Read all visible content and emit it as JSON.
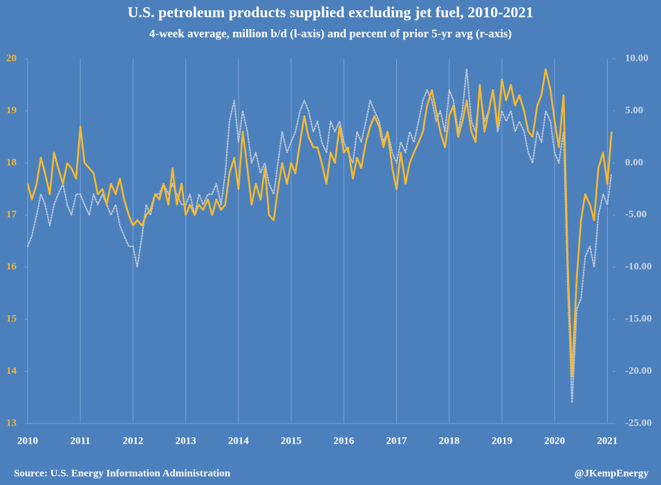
{
  "chart_data": {
    "type": "line",
    "title": "U.S. petroleum products supplied excluding jet fuel, 2010-2021",
    "subtitle": "4-week average, million b/d (l-axis) and percent of prior 5-yr avg (r-axis)",
    "source": "Source: U.S. Energy Information Administration",
    "credit": "@JKempEnergy",
    "xlim": [
      2010,
      2021.1
    ],
    "xticks": [
      2010,
      2011,
      2012,
      2013,
      2014,
      2015,
      2016,
      2017,
      2018,
      2019,
      2020,
      2021
    ],
    "ylim": [
      13,
      20
    ],
    "yticks": [
      13,
      14,
      15,
      16,
      17,
      18,
      19,
      20
    ],
    "y2lim": [
      -25,
      10
    ],
    "y2ticks": [
      {
        "value": -25,
        "label": "-25.00"
      },
      {
        "value": -20,
        "label": "-20.00"
      },
      {
        "value": -15,
        "label": "-15.00"
      },
      {
        "value": -10,
        "label": "-10.00"
      },
      {
        "value": -5,
        "label": "-5.00"
      },
      {
        "value": 0,
        "label": "0.00"
      },
      {
        "value": 5,
        "label": "5.00"
      },
      {
        "value": 10,
        "label": "10.00"
      }
    ],
    "grid": true,
    "x": [
      2010,
      2010.08,
      2010.17,
      2010.25,
      2010.33,
      2010.42,
      2010.5,
      2010.58,
      2010.67,
      2010.75,
      2010.83,
      2010.92,
      2011,
      2011.08,
      2011.17,
      2011.25,
      2011.33,
      2011.42,
      2011.5,
      2011.58,
      2011.67,
      2011.75,
      2011.83,
      2011.92,
      2012,
      2012.08,
      2012.17,
      2012.25,
      2012.33,
      2012.42,
      2012.5,
      2012.58,
      2012.67,
      2012.75,
      2012.83,
      2012.92,
      2013,
      2013.08,
      2013.17,
      2013.25,
      2013.33,
      2013.42,
      2013.5,
      2013.58,
      2013.67,
      2013.75,
      2013.83,
      2013.92,
      2014,
      2014.08,
      2014.17,
      2014.25,
      2014.33,
      2014.42,
      2014.5,
      2014.58,
      2014.67,
      2014.75,
      2014.83,
      2014.92,
      2015,
      2015.08,
      2015.17,
      2015.25,
      2015.33,
      2015.42,
      2015.5,
      2015.58,
      2015.67,
      2015.75,
      2015.83,
      2015.92,
      2016,
      2016.08,
      2016.17,
      2016.25,
      2016.33,
      2016.42,
      2016.5,
      2016.58,
      2016.67,
      2016.75,
      2016.83,
      2016.92,
      2017,
      2017.08,
      2017.17,
      2017.25,
      2017.33,
      2017.42,
      2017.5,
      2017.58,
      2017.67,
      2017.75,
      2017.83,
      2017.92,
      2018,
      2018.08,
      2018.17,
      2018.25,
      2018.33,
      2018.42,
      2018.5,
      2018.58,
      2018.67,
      2018.75,
      2018.83,
      2018.92,
      2019,
      2019.08,
      2019.17,
      2019.25,
      2019.33,
      2019.42,
      2019.5,
      2019.58,
      2019.67,
      2019.75,
      2019.83,
      2019.92,
      2020,
      2020.08,
      2020.17,
      2020.25,
      2020.33,
      2020.42,
      2020.5,
      2020.58,
      2020.67,
      2020.75,
      2020.83,
      2020.92,
      2021,
      2021.08
    ],
    "series": [
      {
        "name": "million b/d",
        "color": "#f7b92b",
        "axis": "y",
        "values": [
          17.6,
          17.3,
          17.6,
          18.1,
          17.8,
          17.4,
          18.2,
          17.9,
          17.6,
          18.0,
          17.9,
          17.7,
          18.7,
          18.0,
          17.9,
          17.8,
          17.4,
          17.5,
          17.2,
          17.6,
          17.4,
          17.7,
          17.3,
          17.0,
          16.8,
          16.9,
          16.8,
          17.0,
          17.1,
          17.4,
          17.3,
          17.6,
          17.2,
          17.9,
          17.2,
          17.6,
          17.0,
          17.2,
          17.0,
          17.2,
          17.1,
          17.3,
          17.0,
          17.3,
          17.1,
          17.2,
          17.8,
          18.1,
          17.5,
          18.6,
          17.9,
          17.2,
          17.6,
          17.3,
          17.9,
          17.0,
          16.9,
          17.5,
          18.0,
          17.6,
          18.0,
          17.8,
          18.4,
          18.9,
          18.5,
          18.3,
          18.3,
          18.0,
          17.6,
          18.2,
          18.0,
          18.7,
          18.2,
          18.3,
          17.7,
          18.1,
          17.9,
          18.4,
          18.7,
          18.9,
          18.7,
          18.3,
          18.6,
          17.9,
          17.5,
          18.2,
          17.6,
          18.0,
          18.2,
          18.4,
          18.6,
          19.1,
          19.4,
          19.0,
          18.6,
          18.3,
          18.9,
          19.1,
          18.5,
          18.8,
          19.2,
          18.6,
          18.4,
          19.5,
          18.6,
          19.0,
          19.4,
          18.7,
          19.6,
          19.2,
          19.5,
          19.1,
          19.3,
          19.0,
          18.6,
          18.5,
          19.1,
          19.3,
          19.8,
          19.4,
          18.8,
          18.3,
          19.3,
          16.0,
          13.9,
          15.8,
          16.9,
          17.4,
          17.2,
          16.9,
          17.9,
          18.2,
          17.6,
          18.6
        ]
      },
      {
        "name": "percent of prior 5-yr avg",
        "color": "#b9c5d6",
        "axis": "y2",
        "values": [
          -8,
          -7,
          -5,
          -3,
          -4,
          -6,
          -4,
          -3,
          -2,
          -4,
          -5,
          -3,
          -3,
          -4,
          -5,
          -3,
          -4,
          -3,
          -4,
          -5,
          -4,
          -6,
          -7,
          -8,
          -8,
          -10,
          -7,
          -4,
          -5,
          -3,
          -3,
          -2,
          -3,
          -2,
          -3,
          -4,
          -4,
          -3,
          -5,
          -3,
          -4,
          -3,
          -3,
          -2,
          -4,
          -1,
          4,
          6,
          2,
          5,
          3,
          0,
          1,
          -1,
          0,
          -2,
          -3,
          0,
          3,
          1,
          2,
          3,
          5,
          6,
          5,
          3,
          4,
          2,
          1,
          4,
          3,
          4,
          2,
          1,
          0,
          3,
          2,
          4,
          6,
          5,
          4,
          2,
          3,
          1,
          0,
          2,
          1,
          3,
          2,
          4,
          6,
          7,
          6,
          4,
          5,
          3,
          7,
          6,
          3,
          5,
          9,
          4,
          3,
          7,
          4,
          5,
          7,
          3,
          5,
          4,
          5,
          3,
          4,
          3,
          1,
          0,
          3,
          2,
          5,
          4,
          1,
          0,
          3,
          -12,
          -23,
          -14,
          -13,
          -9,
          -8,
          -10,
          -5,
          -3,
          -4,
          -1
        ]
      }
    ]
  }
}
